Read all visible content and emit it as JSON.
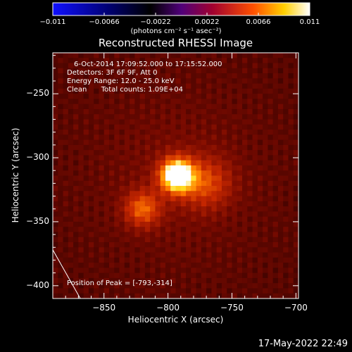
{
  "window": {
    "title": "Reconstructed RHESSI Image",
    "footer_timestamp": "17-May-2022 22:49"
  },
  "colorbar": {
    "colormap": "hot (blue-black-purple-red-orange-yellow-white)",
    "tick_labels": [
      "−0.011",
      "−0.0066",
      "−0.0022",
      "0.0022",
      "0.0066",
      "0.011"
    ],
    "tick_values": [
      -0.011,
      -0.0066,
      -0.0022,
      0.0022,
      0.0066,
      0.011
    ],
    "units_label": "(photons cm⁻² s⁻¹ asec⁻²)",
    "range": [
      -0.011,
      0.011
    ]
  },
  "annotations": {
    "time_range": "6-Oct-2014 17:09:52.000 to 17:15:52.000",
    "detectors": "Detectors: 3F 6F 9F, Att 0",
    "energy_range": "Energy Range: 12.0 - 25.0 keV",
    "algorithm": "Clean",
    "total_counts": "Total counts: 1.09E+04",
    "peak_position": "Position of Peak = [-793,-314]"
  },
  "chart_data": {
    "type": "heatmap",
    "title": "Reconstructed RHESSI Image",
    "xlabel": "Heliocentric X (arcsec)",
    "ylabel": "Heliocentric Y (arcsec)",
    "xlim": [
      -890,
      -698
    ],
    "ylim": [
      -410,
      -218
    ],
    "x_ticks": [
      -850,
      -800,
      -750,
      -700
    ],
    "x_tick_labels": [
      "−850",
      "−800",
      "−750",
      "−700"
    ],
    "y_ticks": [
      -250,
      -300,
      -350,
      -400
    ],
    "y_tick_labels": [
      "−250",
      "−300",
      "−350",
      "−400"
    ],
    "peak": {
      "x": -793,
      "y": -314
    },
    "limb_line": {
      "points": [
        [
          -890,
          -372
        ],
        [
          -860,
          -425
        ]
      ]
    },
    "sources": [
      {
        "x": -793,
        "y": -314,
        "intensity": 1.0,
        "sigma": 9
      },
      {
        "x": -820,
        "y": -340,
        "intensity": 0.45,
        "sigma": 10
      },
      {
        "x": -770,
        "y": -320,
        "intensity": 0.35,
        "sigma": 14
      }
    ]
  }
}
